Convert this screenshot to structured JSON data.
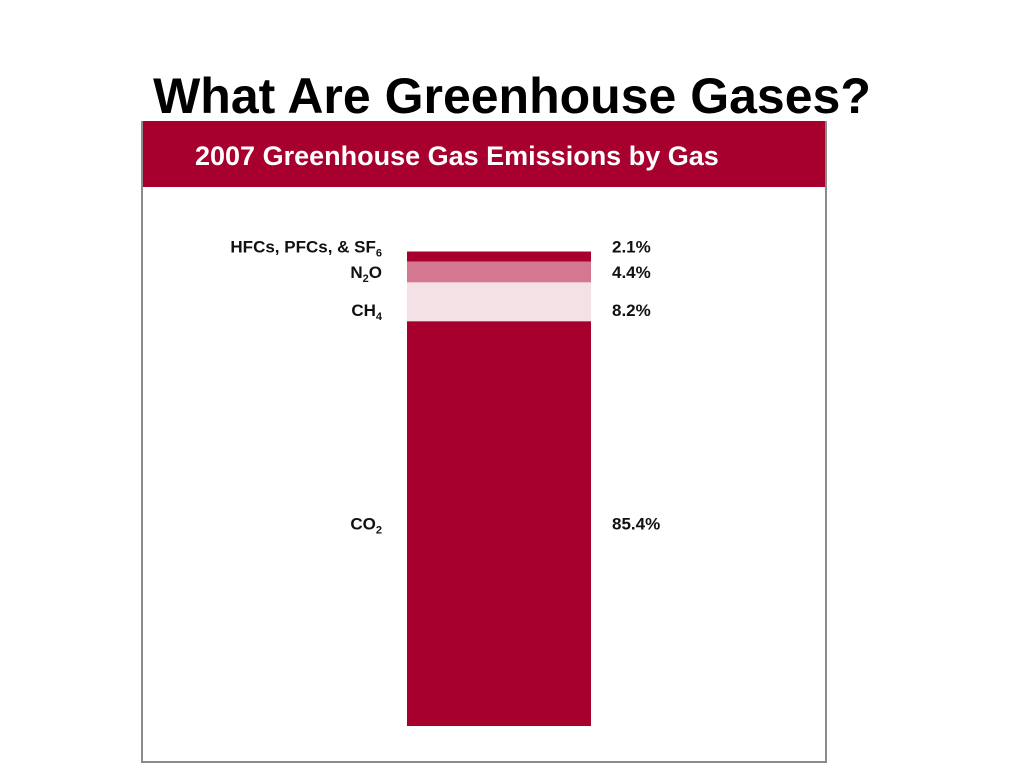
{
  "slide": {
    "title": "What Are Greenhouse Gases?"
  },
  "colors": {
    "accent": "#a8002e",
    "panel_border": "#8c8c8c"
  },
  "chart_data": {
    "type": "bar",
    "stacked": true,
    "title": "2007 Greenhouse Gas Emissions by Gas",
    "xlabel": "",
    "ylabel": "",
    "ylim": [
      0,
      100
    ],
    "grid": false,
    "segments": [
      {
        "label": "CO",
        "sub": "2",
        "value": 85.4,
        "value_label": "85.4%",
        "color": "#a8002e"
      },
      {
        "label": "CH",
        "sub": "4",
        "value": 8.2,
        "value_label": "8.2%",
        "color": "#f3e1e6"
      },
      {
        "label": "N",
        "sub": "2",
        "label_suffix": "O",
        "value": 4.4,
        "value_label": "4.4%",
        "color": "#d47892"
      },
      {
        "label": "HFCs, PFCs, & SF",
        "sub": "6",
        "value": 2.1,
        "value_label": "2.1%",
        "color": "#a8002e"
      }
    ]
  }
}
